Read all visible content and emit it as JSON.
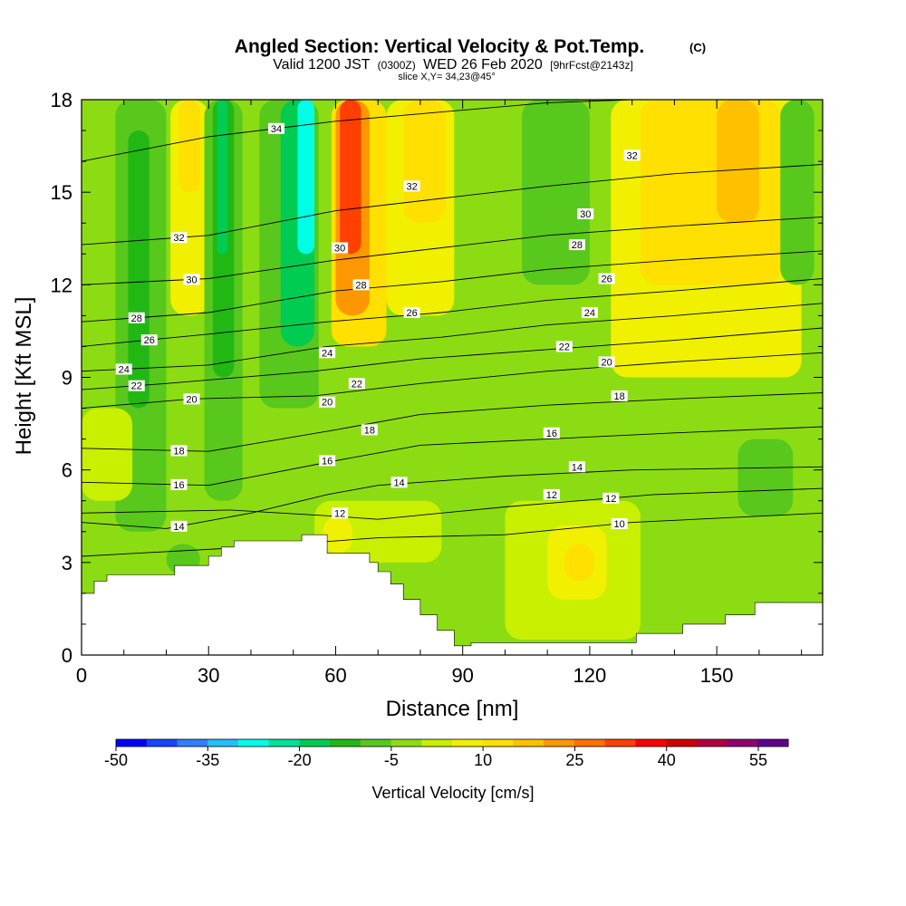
{
  "chart_data": {
    "type": "heatmap",
    "title": "Angled Section: Vertical Velocity & Pot.Temp.",
    "title_units": "(C)",
    "subtitle_parts": [
      "Valid 1200 JST",
      "(0300Z)",
      "WED 26 Feb 2020",
      "[9hrFcst@2143z]"
    ],
    "slice_label": "slice X,Y= 34,23@45°",
    "xlabel": "Distance [nm]",
    "ylabel": "Height [Kft MSL]",
    "xlim": [
      0,
      175
    ],
    "ylim": [
      0,
      18
    ],
    "x_ticks": [
      0,
      30,
      60,
      90,
      120,
      150
    ],
    "y_ticks": [
      0,
      3,
      6,
      9,
      12,
      15,
      18
    ],
    "colorbar": {
      "label": "Vertical Velocity [cm/s]",
      "ticks": [
        "-50",
        "-35",
        "-20",
        "-5",
        "10",
        "25",
        "40",
        "55"
      ],
      "colors": [
        "#0000ff",
        "#1644ff",
        "#2d80ff",
        "#23c0ff",
        "#00ffe6",
        "#00e29a",
        "#00cc52",
        "#22b814",
        "#58c81c",
        "#8cdc14",
        "#c8f000",
        "#f0f000",
        "#ffe000",
        "#ffc000",
        "#ff9800",
        "#ff7000",
        "#ff4000",
        "#ff0000",
        "#d00000",
        "#b00040",
        "#900070",
        "#600090"
      ]
    },
    "background_color": "#8cdc14",
    "grid": false,
    "velocity_cells": [
      {
        "x": [
          8,
          20
        ],
        "y": [
          4,
          18
        ],
        "v": -10,
        "color": "#58c81c"
      },
      {
        "x": [
          11,
          16
        ],
        "y": [
          8,
          17
        ],
        "v": -15,
        "color": "#22b814"
      },
      {
        "x": [
          21,
          30
        ],
        "y": [
          11,
          18
        ],
        "v": 10,
        "color": "#f0f000"
      },
      {
        "x": [
          23,
          28
        ],
        "y": [
          15,
          18
        ],
        "v": 15,
        "color": "#ffe000"
      },
      {
        "x": [
          29,
          38
        ],
        "y": [
          5,
          18
        ],
        "v": -10,
        "color": "#58c81c"
      },
      {
        "x": [
          31,
          36
        ],
        "y": [
          9,
          18
        ],
        "v": -15,
        "color": "#22b814"
      },
      {
        "x": [
          32,
          34.5
        ],
        "y": [
          13,
          18
        ],
        "v": -20,
        "color": "#00cc52"
      },
      {
        "x": [
          42,
          56
        ],
        "y": [
          8,
          18
        ],
        "v": -10,
        "color": "#58c81c"
      },
      {
        "x": [
          47,
          55
        ],
        "y": [
          10,
          18
        ],
        "v": -20,
        "color": "#00cc52"
      },
      {
        "x": [
          51,
          55
        ],
        "y": [
          13,
          18
        ],
        "v": -30,
        "color": "#00ffe6"
      },
      {
        "x": [
          59,
          72
        ],
        "y": [
          10,
          18
        ],
        "v": 15,
        "color": "#ffe000"
      },
      {
        "x": [
          60,
          68
        ],
        "y": [
          11,
          18
        ],
        "v": 25,
        "color": "#ff9800"
      },
      {
        "x": [
          61,
          66
        ],
        "y": [
          13,
          18
        ],
        "v": 35,
        "color": "#ff4000"
      },
      {
        "x": [
          72,
          88
        ],
        "y": [
          11,
          18
        ],
        "v": 10,
        "color": "#f0f000"
      },
      {
        "x": [
          76,
          86
        ],
        "y": [
          14,
          18
        ],
        "v": 15,
        "color": "#ffe000"
      },
      {
        "x": [
          104,
          120
        ],
        "y": [
          12,
          18
        ],
        "v": -10,
        "color": "#58c81c"
      },
      {
        "x": [
          125,
          170
        ],
        "y": [
          9,
          18
        ],
        "v": 10,
        "color": "#f0f000"
      },
      {
        "x": [
          132,
          165
        ],
        "y": [
          12,
          18
        ],
        "v": 15,
        "color": "#ffe000"
      },
      {
        "x": [
          150,
          160
        ],
        "y": [
          14,
          18
        ],
        "v": 20,
        "color": "#ffc000"
      },
      {
        "x": [
          165,
          173
        ],
        "y": [
          12,
          18
        ],
        "v": -10,
        "color": "#58c81c"
      },
      {
        "x": [
          0,
          12
        ],
        "y": [
          5,
          8
        ],
        "v": 5,
        "color": "#c8f000"
      },
      {
        "x": [
          55,
          85
        ],
        "y": [
          3,
          5
        ],
        "v": 5,
        "color": "#c8f000"
      },
      {
        "x": [
          57,
          64
        ],
        "y": [
          3.3,
          4.5
        ],
        "v": 12,
        "color": "#f0f000"
      },
      {
        "x": [
          100,
          132
        ],
        "y": [
          0.5,
          5
        ],
        "v": 5,
        "color": "#c8f000"
      },
      {
        "x": [
          110,
          124
        ],
        "y": [
          1.8,
          4.2
        ],
        "v": 10,
        "color": "#f0f000"
      },
      {
        "x": [
          114,
          121
        ],
        "y": [
          2.4,
          3.6
        ],
        "v": 15,
        "color": "#ffe000"
      },
      {
        "x": [
          155,
          168
        ],
        "y": [
          4.5,
          7
        ],
        "v": -10,
        "color": "#58c81c"
      },
      {
        "x": [
          20,
          28
        ],
        "y": [
          2.6,
          3.6
        ],
        "v": -10,
        "color": "#58c81c"
      },
      {
        "x": [
          140,
          175
        ],
        "y": [
          1.6,
          4
        ],
        "v": 0,
        "color": "#8cdc14"
      }
    ],
    "terrain": {
      "x": [
        0,
        3,
        3,
        6,
        6,
        22,
        22,
        30,
        30,
        33,
        33,
        36,
        36,
        52,
        52,
        58,
        58,
        68,
        68,
        70,
        70,
        73,
        73,
        76,
        76,
        80,
        80,
        84,
        84,
        88,
        88,
        92,
        92,
        131,
        131,
        142,
        142,
        152,
        152,
        159,
        159,
        175
      ],
      "y": [
        2,
        2,
        2.4,
        2.4,
        2.6,
        2.6,
        2.9,
        2.9,
        3.2,
        3.2,
        3.5,
        3.5,
        3.7,
        3.7,
        3.9,
        3.9,
        3.3,
        3.3,
        3.0,
        3.0,
        2.7,
        2.7,
        2.3,
        2.3,
        1.8,
        1.8,
        1.3,
        1.3,
        0.8,
        0.8,
        0.3,
        0.3,
        0.4,
        0.4,
        0.7,
        0.7,
        1.0,
        1.0,
        1.3,
        1.3,
        1.7,
        1.7
      ]
    },
    "isentropes": [
      {
        "value": 10,
        "label_x": 127,
        "points": [
          [
            0,
            3.2
          ],
          [
            40,
            3.5
          ],
          [
            70,
            3.8
          ],
          [
            100,
            3.9
          ],
          [
            130,
            4.3
          ],
          [
            175,
            4.6
          ]
        ]
      },
      {
        "value": 12,
        "label_x": 125,
        "points": [
          [
            0,
            4.6
          ],
          [
            35,
            4.7
          ],
          [
            60,
            4.5
          ],
          [
            70,
            4.4
          ],
          [
            100,
            4.8
          ],
          [
            135,
            5.2
          ],
          [
            175,
            5.4
          ]
        ]
      },
      {
        "value": 14,
        "label_x": 23,
        "points": [
          [
            0,
            4.3
          ],
          [
            20,
            4.1
          ],
          [
            40,
            4.6
          ],
          [
            58,
            5.2
          ],
          [
            70,
            5.5
          ],
          [
            100,
            5.8
          ],
          [
            130,
            6.0
          ],
          [
            175,
            6.1
          ]
        ]
      },
      {
        "value": 16,
        "label_x": 23,
        "points": [
          [
            0,
            5.6
          ],
          [
            30,
            5.5
          ],
          [
            60,
            6.3
          ],
          [
            80,
            6.8
          ],
          [
            110,
            7.0
          ],
          [
            140,
            7.2
          ],
          [
            175,
            7.4
          ]
        ]
      },
      {
        "value": 18,
        "label_x": 23,
        "points": [
          [
            0,
            6.7
          ],
          [
            30,
            6.6
          ],
          [
            60,
            7.3
          ],
          [
            80,
            7.8
          ],
          [
            110,
            8.1
          ],
          [
            140,
            8.3
          ],
          [
            175,
            8.5
          ]
        ]
      },
      {
        "value": 20,
        "label_x": 26,
        "points": [
          [
            0,
            8.0
          ],
          [
            26,
            8.3
          ],
          [
            55,
            8.4
          ],
          [
            80,
            8.8
          ],
          [
            110,
            9.2
          ],
          [
            140,
            9.5
          ],
          [
            175,
            9.8
          ]
        ]
      },
      {
        "value": 22,
        "label_x": 13,
        "points": [
          [
            0,
            8.6
          ],
          [
            20,
            8.8
          ],
          [
            55,
            9.2
          ],
          [
            80,
            9.6
          ],
          [
            110,
            9.9
          ],
          [
            140,
            10.2
          ],
          [
            175,
            10.6
          ]
        ]
      },
      {
        "value": 24,
        "label_x": 10,
        "points": [
          [
            0,
            9.2
          ],
          [
            30,
            9.4
          ],
          [
            58,
            10.0
          ],
          [
            85,
            10.3
          ],
          [
            110,
            10.7
          ],
          [
            140,
            11.0
          ],
          [
            175,
            11.4
          ]
        ]
      },
      {
        "value": 26,
        "label_x": 16,
        "points": [
          [
            0,
            10.0
          ],
          [
            30,
            10.4
          ],
          [
            58,
            10.8
          ],
          [
            85,
            11.1
          ],
          [
            110,
            11.5
          ],
          [
            140,
            11.8
          ],
          [
            175,
            12.2
          ]
        ]
      },
      {
        "value": 28,
        "label_x": 13,
        "points": [
          [
            0,
            10.8
          ],
          [
            30,
            11.1
          ],
          [
            60,
            11.8
          ],
          [
            85,
            12.1
          ],
          [
            110,
            12.5
          ],
          [
            140,
            12.8
          ],
          [
            175,
            13.1
          ]
        ]
      },
      {
        "value": 30,
        "label_x": 26,
        "points": [
          [
            0,
            12.0
          ],
          [
            30,
            12.2
          ],
          [
            60,
            12.8
          ],
          [
            85,
            13.2
          ],
          [
            110,
            13.6
          ],
          [
            140,
            13.9
          ],
          [
            175,
            14.2
          ]
        ]
      },
      {
        "value": 32,
        "label_x": 23,
        "points": [
          [
            0,
            13.3
          ],
          [
            30,
            13.6
          ],
          [
            60,
            14.4
          ],
          [
            85,
            14.8
          ],
          [
            110,
            15.2
          ],
          [
            140,
            15.6
          ],
          [
            175,
            15.9
          ]
        ]
      },
      {
        "value": 34,
        "label_x": 46,
        "points": [
          [
            0,
            16.0
          ],
          [
            30,
            16.8
          ],
          [
            60,
            17.3
          ],
          [
            85,
            17.6
          ],
          [
            110,
            17.9
          ],
          [
            130,
            18.0
          ]
        ]
      }
    ],
    "extra_labels": [
      {
        "value": "32",
        "x": 78,
        "y": 15.2
      },
      {
        "value": "32",
        "x": 130,
        "y": 16.2
      },
      {
        "value": "30",
        "x": 61,
        "y": 13.2
      },
      {
        "value": "30",
        "x": 119,
        "y": 14.3
      },
      {
        "value": "28",
        "x": 66,
        "y": 12.0
      },
      {
        "value": "28",
        "x": 117,
        "y": 13.3
      },
      {
        "value": "26",
        "x": 78,
        "y": 11.1
      },
      {
        "value": "26",
        "x": 124,
        "y": 12.2
      },
      {
        "value": "24",
        "x": 58,
        "y": 9.8
      },
      {
        "value": "24",
        "x": 120,
        "y": 11.1
      },
      {
        "value": "22",
        "x": 65,
        "y": 8.8
      },
      {
        "value": "22",
        "x": 114,
        "y": 10.0
      },
      {
        "value": "20",
        "x": 58,
        "y": 8.2
      },
      {
        "value": "20",
        "x": 124,
        "y": 9.5
      },
      {
        "value": "18",
        "x": 68,
        "y": 7.3
      },
      {
        "value": "18",
        "x": 127,
        "y": 8.4
      },
      {
        "value": "16",
        "x": 58,
        "y": 6.3
      },
      {
        "value": "16",
        "x": 111,
        "y": 7.2
      },
      {
        "value": "14",
        "x": 75,
        "y": 5.6
      },
      {
        "value": "14",
        "x": 117,
        "y": 6.1
      },
      {
        "value": "12",
        "x": 61,
        "y": 4.6
      },
      {
        "value": "12",
        "x": 111,
        "y": 5.2
      }
    ]
  }
}
